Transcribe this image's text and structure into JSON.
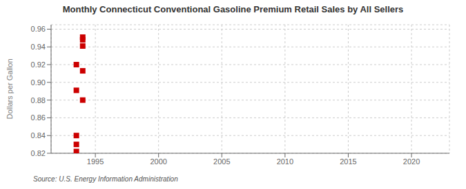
{
  "chart_data": {
    "type": "scatter",
    "title": "Monthly Connecticut Conventional Gasoline Premium Retail Sales by All Sellers",
    "ylabel": "Dollars per Gallon",
    "source": "Source: U.S. Energy Information Administration",
    "x": [
      1993.5,
      1993.5,
      1993.5,
      1993.5,
      1993.5,
      1994.0,
      1994.0,
      1994.0,
      1994.0,
      1994.0
    ],
    "values": [
      0.822,
      0.83,
      0.84,
      0.891,
      0.92,
      0.88,
      0.913,
      0.941,
      0.951,
      0.948
    ],
    "color": "#cc0000",
    "marker": "square",
    "xlim": [
      1991.5,
      2023
    ],
    "ylim": [
      0.82,
      0.965
    ],
    "xticks": [
      1995,
      2000,
      2005,
      2010,
      2015,
      2020
    ],
    "yticks": [
      0.82,
      0.84,
      0.86,
      0.88,
      {
        "value": 0.9,
        "label": "0.90"
      },
      0.92,
      0.94,
      0.96
    ],
    "grid": true
  }
}
